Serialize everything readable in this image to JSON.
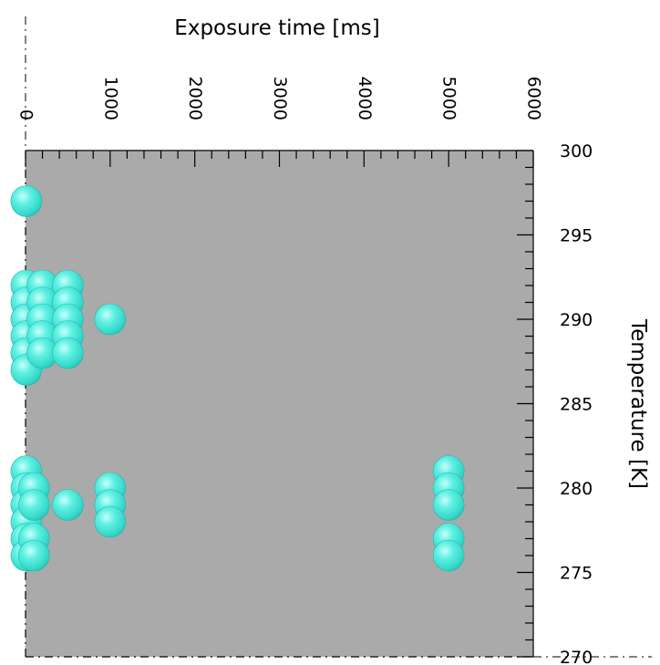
{
  "chart_data": {
    "type": "scatter",
    "title": "",
    "xlabel": "Exposure time [ms]",
    "ylabel": "Temperature [K]",
    "xlim": [
      0,
      6000
    ],
    "ylim": [
      270,
      300
    ],
    "x_ticks": [
      0,
      1000,
      2000,
      3000,
      4000,
      5000,
      6000
    ],
    "x_tick_labels": [
      "0",
      "1000",
      "2000",
      "3000",
      "4000",
      "5000",
      "6000"
    ],
    "y_ticks": [
      270,
      275,
      280,
      285,
      290,
      295,
      300
    ],
    "y_tick_labels": [
      "270",
      "275",
      "280",
      "285",
      "290",
      "295",
      "300"
    ],
    "grid": false,
    "plot_background": "#aaaaaa",
    "marker_color": "#40e0d0",
    "points": [
      {
        "x": 10,
        "y": 297
      },
      {
        "x": 10,
        "y": 292
      },
      {
        "x": 10,
        "y": 291
      },
      {
        "x": 10,
        "y": 290
      },
      {
        "x": 10,
        "y": 289
      },
      {
        "x": 10,
        "y": 288
      },
      {
        "x": 10,
        "y": 287
      },
      {
        "x": 200,
        "y": 292
      },
      {
        "x": 200,
        "y": 291
      },
      {
        "x": 200,
        "y": 290
      },
      {
        "x": 200,
        "y": 289
      },
      {
        "x": 200,
        "y": 288
      },
      {
        "x": 500,
        "y": 292
      },
      {
        "x": 500,
        "y": 291
      },
      {
        "x": 500,
        "y": 290
      },
      {
        "x": 500,
        "y": 289
      },
      {
        "x": 500,
        "y": 288
      },
      {
        "x": 1000,
        "y": 290
      },
      {
        "x": 10,
        "y": 281
      },
      {
        "x": 10,
        "y": 280
      },
      {
        "x": 10,
        "y": 279
      },
      {
        "x": 10,
        "y": 278
      },
      {
        "x": 10,
        "y": 277
      },
      {
        "x": 10,
        "y": 276
      },
      {
        "x": 100,
        "y": 280
      },
      {
        "x": 100,
        "y": 279
      },
      {
        "x": 100,
        "y": 277
      },
      {
        "x": 100,
        "y": 276
      },
      {
        "x": 500,
        "y": 279
      },
      {
        "x": 1000,
        "y": 280
      },
      {
        "x": 1000,
        "y": 279
      },
      {
        "x": 1000,
        "y": 278
      },
      {
        "x": 5000,
        "y": 281
      },
      {
        "x": 5000,
        "y": 280
      },
      {
        "x": 5000,
        "y": 279
      },
      {
        "x": 5000,
        "y": 277
      },
      {
        "x": 5000,
        "y": 276
      }
    ]
  }
}
